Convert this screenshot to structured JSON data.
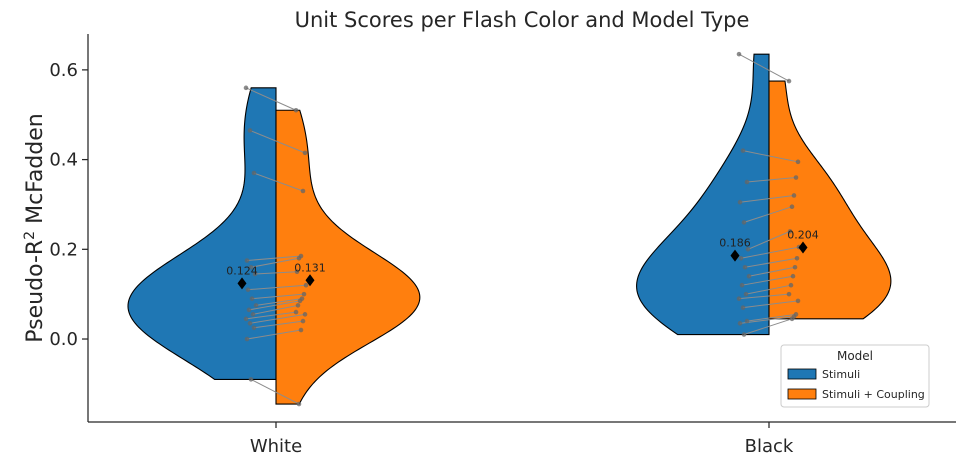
{
  "chart_data": {
    "type": "violin",
    "title": "Unit Scores per Flash Color and Model Type",
    "ylabel": "Pseudo-R",
    "ylabel_sup": "2",
    "ylabel_suffix": " McFadden",
    "xlabel": "",
    "categories": [
      "White",
      "Black"
    ],
    "ylim": [
      -0.185,
      0.68
    ],
    "yticks": [
      0.0,
      0.2,
      0.4,
      0.6
    ],
    "ytick_labels": [
      "0.0",
      "0.2",
      "0.4",
      "0.6"
    ],
    "grid": false,
    "legend": {
      "title": "Model",
      "position": "lower-right",
      "entries": [
        "Stimuli",
        "Stimuli + Coupling"
      ]
    },
    "colors": {
      "Stimuli": "#1f77b4",
      "Stimuli + Coupling": "#ff7f0e"
    },
    "series": [
      {
        "name": "Stimuli",
        "means": [
          0.124,
          0.186
        ],
        "mean_labels": [
          "0.124",
          "0.186"
        ],
        "points": [
          [
            0.56,
            0.465,
            0.37,
            0.175,
            0.16,
            0.145,
            0.11,
            0.09,
            0.075,
            0.065,
            0.055,
            0.045,
            0.035,
            0.025,
            0.0,
            -0.09
          ],
          [
            0.635,
            0.42,
            0.35,
            0.305,
            0.26,
            0.2,
            0.18,
            0.16,
            0.14,
            0.12,
            0.1,
            0.09,
            0.07,
            0.04,
            0.035,
            0.01
          ]
        ]
      },
      {
        "name": "Stimuli + Coupling",
        "means": [
          0.131,
          0.204
        ],
        "mean_labels": [
          "0.131",
          "0.204"
        ],
        "points": [
          [
            0.51,
            0.415,
            0.33,
            0.185,
            0.18,
            0.15,
            0.12,
            0.1,
            0.09,
            0.085,
            0.075,
            0.06,
            0.055,
            0.04,
            0.02,
            -0.145
          ],
          [
            0.575,
            0.395,
            0.36,
            0.32,
            0.295,
            0.24,
            0.205,
            0.18,
            0.16,
            0.14,
            0.12,
            0.1,
            0.085,
            0.055,
            0.05,
            0.045
          ]
        ]
      }
    ]
  }
}
